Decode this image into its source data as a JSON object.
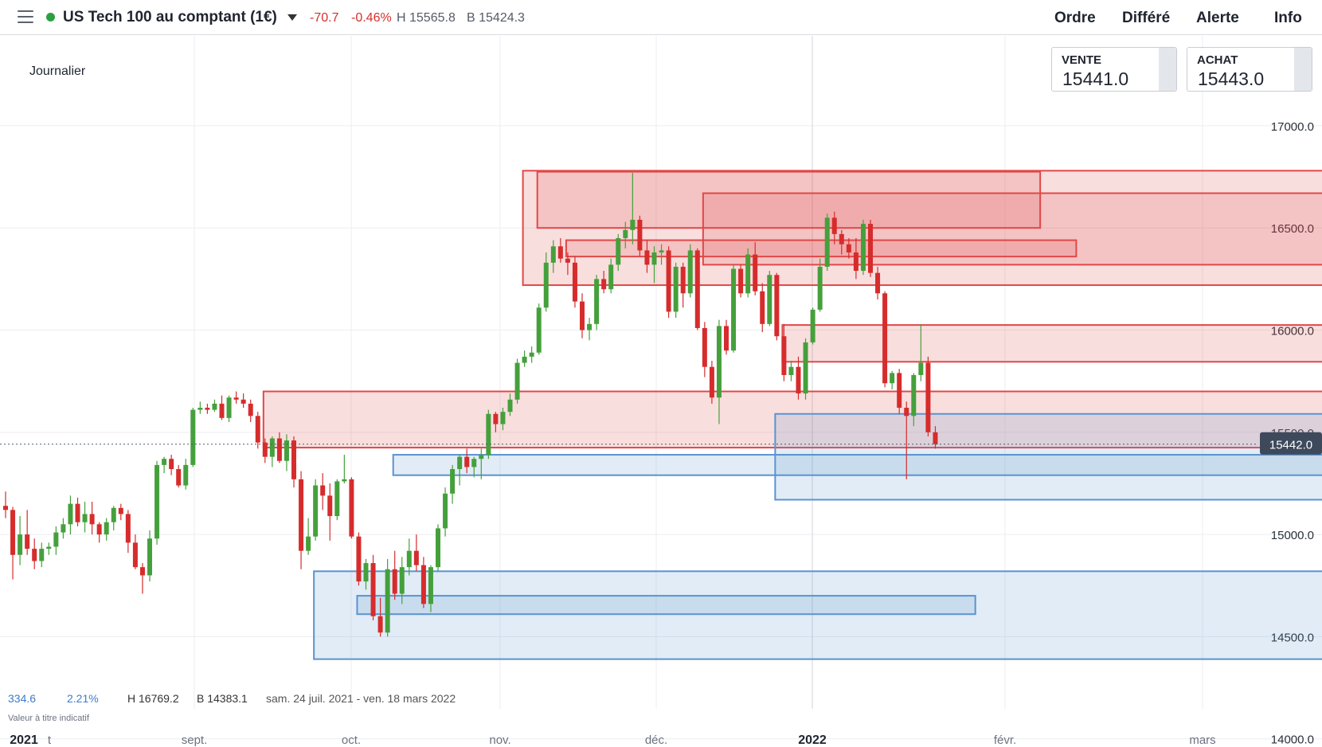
{
  "header": {
    "instrument": "US Tech 100 au comptant (1€)",
    "change": "-70.7",
    "change_pct": "-0.46%",
    "high": "H 15565.8",
    "low": "B 15424.3",
    "status_color": "#2e9e44",
    "menu": [
      "Ordre",
      "Différé",
      "Alerte",
      "Info"
    ]
  },
  "chart": {
    "timeframe": "Journalier",
    "sell_label": "VENTE",
    "sell_value": "15441.0",
    "buy_label": "ACHAT",
    "buy_value": "15443.0",
    "stats": {
      "points": "334.6",
      "percent": "2.21%",
      "high": "H 16769.2",
      "low": "B 14383.1",
      "range": "sam. 24 juil. 2021 - ven. 18 mars 2022"
    },
    "disclaimer": "Valeur à titre indicatif"
  },
  "chart_data": {
    "type": "candlestick",
    "y_ticks": [
      "17000.0",
      "16500.0",
      "16000.0",
      "15500.0",
      "15000.0",
      "14500.0",
      "14000.0"
    ],
    "x_ticks": [
      "2021",
      "t",
      "sept.",
      "oct.",
      "nov.",
      "déc.",
      "2022",
      "févr.",
      "mars"
    ],
    "current_price": 15442.0,
    "current_price_label": "15442.0",
    "ylim": [
      13960,
      17440
    ],
    "colors": {
      "up": "#45a03c",
      "down": "#d62c2c",
      "zone_red": "#e04848",
      "zone_blue": "#5b93cf"
    },
    "candles": [
      [
        15140,
        15210,
        15080,
        15120
      ],
      [
        15120,
        15135,
        14780,
        14900
      ],
      [
        14900,
        15090,
        14850,
        15000
      ],
      [
        15000,
        15120,
        14900,
        14930
      ],
      [
        14930,
        14980,
        14830,
        14870
      ],
      [
        14870,
        14960,
        14840,
        14930
      ],
      [
        14930,
        14960,
        14900,
        14940
      ],
      [
        14940,
        15040,
        14900,
        15010
      ],
      [
        15010,
        15080,
        14980,
        15050
      ],
      [
        15050,
        15190,
        15000,
        15150
      ],
      [
        15150,
        15180,
        15040,
        15060
      ],
      [
        15060,
        15160,
        15010,
        15100
      ],
      [
        15100,
        15160,
        15000,
        15050
      ],
      [
        15050,
        15060,
        14960,
        15000
      ],
      [
        15000,
        15080,
        14970,
        15060
      ],
      [
        15060,
        15140,
        15020,
        15130
      ],
      [
        15130,
        15150,
        15070,
        15100
      ],
      [
        15100,
        15120,
        14910,
        14960
      ],
      [
        14960,
        15000,
        14830,
        14840
      ],
      [
        14840,
        14860,
        14710,
        14800
      ],
      [
        14800,
        15020,
        14770,
        14980
      ],
      [
        14980,
        15360,
        14950,
        15340
      ],
      [
        15340,
        15380,
        15300,
        15370
      ],
      [
        15370,
        15390,
        15290,
        15320
      ],
      [
        15320,
        15340,
        15230,
        15240
      ],
      [
        15240,
        15370,
        15220,
        15340
      ],
      [
        15340,
        15620,
        15330,
        15610
      ],
      [
        15610,
        15650,
        15590,
        15620
      ],
      [
        15620,
        15640,
        15590,
        15610
      ],
      [
        15610,
        15660,
        15600,
        15640
      ],
      [
        15640,
        15680,
        15560,
        15570
      ],
      [
        15570,
        15680,
        15550,
        15670
      ],
      [
        15670,
        15700,
        15640,
        15660
      ],
      [
        15660,
        15690,
        15620,
        15640
      ],
      [
        15640,
        15660,
        15550,
        15580
      ],
      [
        15580,
        15600,
        15420,
        15450
      ],
      [
        15450,
        15470,
        15350,
        15380
      ],
      [
        15380,
        15480,
        15330,
        15470
      ],
      [
        15470,
        15500,
        15350,
        15360
      ],
      [
        15360,
        15490,
        15310,
        15460
      ],
      [
        15460,
        15480,
        15230,
        15270
      ],
      [
        15270,
        15310,
        14830,
        14920
      ],
      [
        14920,
        15080,
        14900,
        14990
      ],
      [
        14990,
        15270,
        14970,
        15240
      ],
      [
        15240,
        15300,
        15120,
        15190
      ],
      [
        15190,
        15250,
        14970,
        15090
      ],
      [
        15090,
        15270,
        15070,
        15260
      ],
      [
        15260,
        15390,
        15250,
        15270
      ],
      [
        15270,
        15280,
        14980,
        14990
      ],
      [
        14990,
        15010,
        14750,
        14770
      ],
      [
        14770,
        14880,
        14730,
        14860
      ],
      [
        14860,
        14900,
        14580,
        14600
      ],
      [
        14600,
        14690,
        14500,
        14520
      ],
      [
        14520,
        14880,
        14500,
        14830
      ],
      [
        14830,
        14920,
        14680,
        14710
      ],
      [
        14710,
        14890,
        14660,
        14840
      ],
      [
        14840,
        14980,
        14800,
        14920
      ],
      [
        14920,
        15000,
        14820,
        14850
      ],
      [
        14850,
        14890,
        14640,
        14660
      ],
      [
        14660,
        14850,
        14620,
        14840
      ],
      [
        14840,
        15050,
        14820,
        15030
      ],
      [
        15030,
        15230,
        14990,
        15200
      ],
      [
        15200,
        15340,
        15150,
        15320
      ],
      [
        15320,
        15390,
        15240,
        15380
      ],
      [
        15380,
        15420,
        15300,
        15330
      ],
      [
        15330,
        15380,
        15280,
        15370
      ],
      [
        15370,
        15420,
        15270,
        15390
      ],
      [
        15390,
        15610,
        15370,
        15590
      ],
      [
        15590,
        15600,
        15500,
        15540
      ],
      [
        15540,
        15620,
        15510,
        15600
      ],
      [
        15600,
        15690,
        15580,
        15660
      ],
      [
        15660,
        15860,
        15640,
        15840
      ],
      [
        15840,
        15900,
        15820,
        15870
      ],
      [
        15870,
        15920,
        15840,
        15890
      ],
      [
        15890,
        16130,
        15880,
        16110
      ],
      [
        16110,
        16380,
        16090,
        16330
      ],
      [
        16330,
        16440,
        16280,
        16410
      ],
      [
        16410,
        16450,
        16330,
        16350
      ],
      [
        16350,
        16380,
        16270,
        16330
      ],
      [
        16330,
        16360,
        16110,
        16140
      ],
      [
        16140,
        16180,
        15960,
        16000
      ],
      [
        16000,
        16060,
        15950,
        16030
      ],
      [
        16030,
        16270,
        16000,
        16250
      ],
      [
        16250,
        16290,
        16180,
        16200
      ],
      [
        16200,
        16350,
        16180,
        16320
      ],
      [
        16320,
        16470,
        16290,
        16450
      ],
      [
        16450,
        16530,
        16400,
        16490
      ],
      [
        16490,
        16770,
        16420,
        16540
      ],
      [
        16540,
        16560,
        16360,
        16390
      ],
      [
        16390,
        16440,
        16280,
        16320
      ],
      [
        16320,
        16410,
        16230,
        16380
      ],
      [
        16380,
        16420,
        16320,
        16390
      ],
      [
        16390,
        16410,
        16060,
        16090
      ],
      [
        16090,
        16330,
        16060,
        16310
      ],
      [
        16310,
        16330,
        16110,
        16180
      ],
      [
        16180,
        16420,
        16160,
        16390
      ],
      [
        16390,
        16400,
        16000,
        16010
      ],
      [
        16010,
        16040,
        15770,
        15820
      ],
      [
        15820,
        15850,
        15640,
        15670
      ],
      [
        15670,
        16050,
        15540,
        16020
      ],
      [
        16020,
        16050,
        15880,
        15900
      ],
      [
        15900,
        16320,
        15890,
        16300
      ],
      [
        16300,
        16320,
        16160,
        16180
      ],
      [
        16180,
        16400,
        16160,
        16370
      ],
      [
        16370,
        16430,
        16170,
        16190
      ],
      [
        16190,
        16230,
        15990,
        16030
      ],
      [
        16030,
        16290,
        16020,
        16270
      ],
      [
        16270,
        16280,
        15950,
        15970
      ],
      [
        15970,
        16030,
        15750,
        15780
      ],
      [
        15780,
        15850,
        15750,
        15820
      ],
      [
        15820,
        15870,
        15660,
        15690
      ],
      [
        15690,
        15960,
        15660,
        15940
      ],
      [
        15940,
        16110,
        15930,
        16100
      ],
      [
        16100,
        16350,
        16090,
        16310
      ],
      [
        16310,
        16570,
        16290,
        16550
      ],
      [
        16550,
        16580,
        16420,
        16470
      ],
      [
        16470,
        16490,
        16370,
        16420
      ],
      [
        16420,
        16450,
        16350,
        16380
      ],
      [
        16380,
        16450,
        16250,
        16290
      ],
      [
        16290,
        16540,
        16270,
        16520
      ],
      [
        16520,
        16540,
        16260,
        16280
      ],
      [
        16280,
        16310,
        16150,
        16180
      ],
      [
        16180,
        16190,
        15720,
        15740
      ],
      [
        15740,
        15800,
        15710,
        15790
      ],
      [
        15790,
        15810,
        15590,
        15620
      ],
      [
        15620,
        15650,
        15270,
        15580
      ],
      [
        15580,
        15790,
        15530,
        15780
      ],
      [
        15780,
        16030,
        15750,
        15840
      ],
      [
        15840,
        15870,
        15480,
        15500
      ],
      [
        15500,
        15530,
        15420,
        15442
      ]
    ],
    "zones": [
      {
        "color": "red",
        "x1": 36,
        "x2": 999,
        "y_top": 15700,
        "y_bottom": 15425
      },
      {
        "color": "red",
        "x1": 72,
        "x2": 999,
        "y_top": 16780,
        "y_bottom": 16220
      },
      {
        "color": "red",
        "x1": 74,
        "x2": 143,
        "y_top": 16775,
        "y_bottom": 16500
      },
      {
        "color": "red",
        "x1": 78,
        "x2": 148,
        "y_top": 16440,
        "y_bottom": 16360
      },
      {
        "color": "red",
        "x1": 97,
        "x2": 999,
        "y_top": 16670,
        "y_bottom": 16320
      },
      {
        "color": "red",
        "x1": 108,
        "x2": 999,
        "y_top": 16025,
        "y_bottom": 15845
      },
      {
        "color": "blue",
        "x1": 54,
        "x2": 999,
        "y_top": 15390,
        "y_bottom": 15290
      },
      {
        "color": "blue",
        "x1": 107,
        "x2": 999,
        "y_top": 15590,
        "y_bottom": 15170
      },
      {
        "color": "blue",
        "x1": 43,
        "x2": 999,
        "y_top": 14820,
        "y_bottom": 14390
      },
      {
        "color": "blue",
        "x1": 49,
        "x2": 134,
        "y_top": 14700,
        "y_bottom": 14610
      }
    ]
  }
}
